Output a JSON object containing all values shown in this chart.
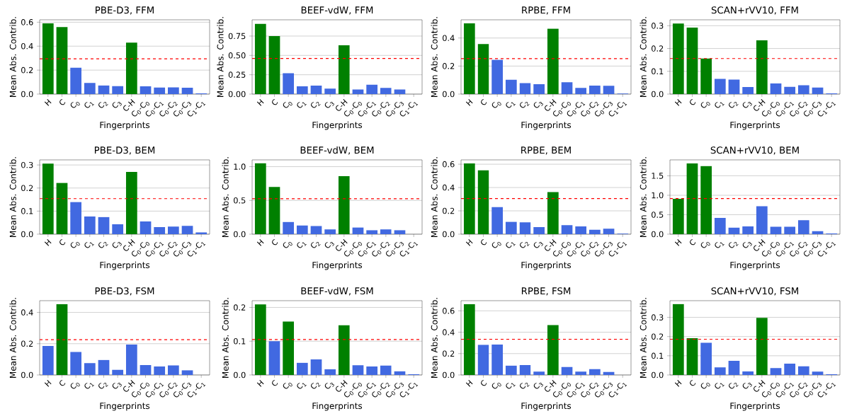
{
  "chart_data": [
    {
      "type": "bar",
      "title": "PBE-D3, FFM",
      "xlabel": "Fingerprints",
      "ylabel": "Mean Abs. Contrib.",
      "categories": [
        "H",
        "C",
        "C$_{0}$",
        "C$_{1}$",
        "C$_{2}$",
        "C$_{3}$",
        "C-H",
        "C$_{0}$-C$_{0}$",
        "C$_{0}$-C$_{1}$",
        "C$_{0}$-C$_{2}$",
        "C$_{0}$-C$_{3}$",
        "C$_{1}$-C$_{1}$"
      ],
      "values": [
        0.59,
        0.56,
        0.22,
        0.093,
        0.072,
        0.067,
        0.43,
        0.065,
        0.055,
        0.056,
        0.053,
        0.006
      ],
      "colors": [
        "#008000",
        "#008000",
        "#4169e1",
        "#4169e1",
        "#4169e1",
        "#4169e1",
        "#008000",
        "#4169e1",
        "#4169e1",
        "#4169e1",
        "#4169e1",
        "#4169e1"
      ],
      "ylim": [
        0,
        0.62
      ],
      "yticks": [
        {
          "value": 0,
          "label": "0.0"
        },
        {
          "value": 0.2,
          "label": "0.2"
        },
        {
          "value": 0.4,
          "label": "0.4"
        },
        {
          "value": 0.6,
          "label": "0.6"
        }
      ],
      "grid": "y",
      "ref_lines": [
        {
          "axis": "y",
          "value": 0.295,
          "color": "#ff0000",
          "line_style": "dashed"
        }
      ]
    },
    {
      "type": "bar",
      "title": "BEEF-vdW, FFM",
      "xlabel": "Fingerprints",
      "ylabel": "Mean Abs. Contrib.",
      "categories": [
        "H",
        "C",
        "C$_{0}$",
        "C$_{1}$",
        "C$_{2}$",
        "C$_{3}$",
        "C-H",
        "C$_{0}$-C$_{0}$",
        "C$_{0}$-C$_{1}$",
        "C$_{0}$-C$_{2}$",
        "C$_{0}$-C$_{3}$",
        "C$_{1}$-C$_{1}$"
      ],
      "values": [
        0.91,
        0.75,
        0.27,
        0.1,
        0.11,
        0.07,
        0.63,
        0.06,
        0.12,
        0.08,
        0.06,
        null
      ],
      "colors": [
        "#008000",
        "#008000",
        "#4169e1",
        "#4169e1",
        "#4169e1",
        "#4169e1",
        "#008000",
        "#4169e1",
        "#4169e1",
        "#4169e1",
        "#4169e1",
        "#4169e1"
      ],
      "ylim": [
        0,
        0.96
      ],
      "yticks": [
        {
          "value": 0,
          "label": "0.00"
        },
        {
          "value": 0.25,
          "label": "0.25"
        },
        {
          "value": 0.5,
          "label": "0.50"
        },
        {
          "value": 0.75,
          "label": "0.75"
        }
      ],
      "grid": "y",
      "ref_lines": [
        {
          "axis": "y",
          "value": 0.46,
          "color": "#ff0000",
          "line_style": "dashed"
        }
      ]
    },
    {
      "type": "bar",
      "title": "RPBE, FFM",
      "xlabel": "Fingerprints",
      "ylabel": "Mean Abs. Contrib.",
      "categories": [
        "H",
        "C",
        "C$_{0}$",
        "C$_{1}$",
        "C$_{2}$",
        "C$_{3}$",
        "C-H",
        "C$_{0}$-C$_{0}$",
        "C$_{0}$-C$_{1}$",
        "C$_{0}$-C$_{2}$",
        "C$_{0}$-C$_{3}$",
        "C$_{1}$-C$_{1}$"
      ],
      "values": [
        0.505,
        0.357,
        0.245,
        0.103,
        0.078,
        0.071,
        0.467,
        0.085,
        0.044,
        0.061,
        0.059,
        0.004
      ],
      "colors": [
        "#008000",
        "#008000",
        "#4169e1",
        "#4169e1",
        "#4169e1",
        "#4169e1",
        "#008000",
        "#4169e1",
        "#4169e1",
        "#4169e1",
        "#4169e1",
        "#4169e1"
      ],
      "ylim": [
        0,
        0.53
      ],
      "yticks": [
        {
          "value": 0,
          "label": "0.0"
        },
        {
          "value": 0.2,
          "label": "0.2"
        },
        {
          "value": 0.4,
          "label": "0.4"
        }
      ],
      "grid": "y",
      "ref_lines": [
        {
          "axis": "y",
          "value": 0.253,
          "color": "#ff0000",
          "line_style": "dashed"
        }
      ]
    },
    {
      "type": "bar",
      "title": "SCAN+rVV10, FFM",
      "xlabel": "Fingerprints",
      "ylabel": "Mean Abs. Contrib.",
      "categories": [
        "H",
        "C",
        "C$_{0}$",
        "C$_{1}$",
        "C$_{2}$",
        "C$_{3}$",
        "C-H",
        "C$_{0}$-C$_{0}$",
        "C$_{0}$-C$_{1}$",
        "C$_{0}$-C$_{2}$",
        "C$_{0}$-C$_{3}$",
        "C$_{1}$-C$_{1}$"
      ],
      "values": [
        0.31,
        0.292,
        0.156,
        0.067,
        0.064,
        0.031,
        0.236,
        0.047,
        0.032,
        0.039,
        0.029,
        0.003
      ],
      "colors": [
        "#008000",
        "#008000",
        "#008000",
        "#4169e1",
        "#4169e1",
        "#4169e1",
        "#008000",
        "#4169e1",
        "#4169e1",
        "#4169e1",
        "#4169e1",
        "#4169e1"
      ],
      "ylim": [
        0,
        0.326
      ],
      "yticks": [
        {
          "value": 0,
          "label": "0.0"
        },
        {
          "value": 0.1,
          "label": "0.1"
        },
        {
          "value": 0.2,
          "label": "0.2"
        },
        {
          "value": 0.3,
          "label": "0.3"
        }
      ],
      "grid": "y",
      "ref_lines": [
        {
          "axis": "y",
          "value": 0.156,
          "color": "#ff0000",
          "line_style": "dashed"
        }
      ]
    },
    {
      "type": "bar",
      "title": "PBE-D3, BEM",
      "xlabel": "Fingerprints",
      "ylabel": "Mean Abs. Contrib.",
      "categories": [
        "H",
        "C",
        "C$_{0}$",
        "C$_{1}$",
        "C$_{2}$",
        "C$_{3}$",
        "C-H",
        "C$_{0}$-C$_{0}$",
        "C$_{0}$-C$_{1}$",
        "C$_{0}$-C$_{2}$",
        "C$_{0}$-C$_{3}$",
        "C$_{1}$-C$_{1}$"
      ],
      "values": [
        0.306,
        0.222,
        0.139,
        0.077,
        0.074,
        0.043,
        0.27,
        0.055,
        0.031,
        0.033,
        0.036,
        0.008
      ],
      "colors": [
        "#008000",
        "#008000",
        "#4169e1",
        "#4169e1",
        "#4169e1",
        "#4169e1",
        "#008000",
        "#4169e1",
        "#4169e1",
        "#4169e1",
        "#4169e1",
        "#4169e1"
      ],
      "ylim": [
        0,
        0.322
      ],
      "yticks": [
        {
          "value": 0,
          "label": "0.0"
        },
        {
          "value": 0.1,
          "label": "0.1"
        },
        {
          "value": 0.2,
          "label": "0.2"
        },
        {
          "value": 0.3,
          "label": "0.3"
        }
      ],
      "grid": "y",
      "ref_lines": [
        {
          "axis": "y",
          "value": 0.154,
          "color": "#ff0000",
          "line_style": "dashed"
        }
      ]
    },
    {
      "type": "bar",
      "title": "BEEF-vdW, BEM",
      "xlabel": "Fingerprints",
      "ylabel": "Mean Abs. Contrib.",
      "categories": [
        "H",
        "C",
        "C$_{0}$",
        "C$_{1}$",
        "C$_{2}$",
        "C$_{3}$",
        "C-H",
        "C$_{0}$-C$_{0}$",
        "C$_{0}$-C$_{1}$",
        "C$_{0}$-C$_{2}$",
        "C$_{0}$-C$_{3}$",
        "C$_{1}$-C$_{1}$"
      ],
      "values": [
        1.05,
        0.7,
        0.18,
        0.13,
        0.12,
        0.07,
        0.86,
        0.1,
        0.06,
        0.07,
        0.06,
        null
      ],
      "colors": [
        "#008000",
        "#008000",
        "#4169e1",
        "#4169e1",
        "#4169e1",
        "#4169e1",
        "#008000",
        "#4169e1",
        "#4169e1",
        "#4169e1",
        "#4169e1",
        "#4169e1"
      ],
      "ylim": [
        0,
        1.1
      ],
      "yticks": [
        {
          "value": 0,
          "label": "0.0"
        },
        {
          "value": 0.5,
          "label": "0.5"
        },
        {
          "value": 1,
          "label": "1.0"
        }
      ],
      "grid": "y",
      "ref_lines": [
        {
          "axis": "y",
          "value": 0.525,
          "color": "#ff0000",
          "line_style": "dashed"
        }
      ]
    },
    {
      "type": "bar",
      "title": "RPBE, BEM",
      "xlabel": "Fingerprints",
      "ylabel": "Mean Abs. Contrib.",
      "categories": [
        "H",
        "C",
        "C$_{0}$",
        "C$_{1}$",
        "C$_{2}$",
        "C$_{3}$",
        "C-H",
        "C$_{0}$-C$_{0}$",
        "C$_{0}$-C$_{1}$",
        "C$_{0}$-C$_{2}$",
        "C$_{0}$-C$_{3}$",
        "C$_{1}$-C$_{1}$"
      ],
      "values": [
        0.607,
        0.548,
        0.232,
        0.106,
        0.102,
        0.06,
        0.361,
        0.078,
        0.066,
        0.038,
        0.047,
        0.004
      ],
      "colors": [
        "#008000",
        "#008000",
        "#4169e1",
        "#4169e1",
        "#4169e1",
        "#4169e1",
        "#008000",
        "#4169e1",
        "#4169e1",
        "#4169e1",
        "#4169e1",
        "#4169e1"
      ],
      "ylim": [
        0,
        0.637
      ],
      "yticks": [
        {
          "value": 0,
          "label": "0.0"
        },
        {
          "value": 0.2,
          "label": "0.2"
        },
        {
          "value": 0.4,
          "label": "0.4"
        },
        {
          "value": 0.6,
          "label": "0.6"
        }
      ],
      "grid": "y",
      "ref_lines": [
        {
          "axis": "y",
          "value": 0.305,
          "color": "#ff0000",
          "line_style": "dashed"
        }
      ]
    },
    {
      "type": "bar",
      "title": "SCAN+rVV10, BEM",
      "xlabel": "Fingerprints",
      "ylabel": "Mean Abs. Contrib.",
      "categories": [
        "H",
        "C",
        "C$_{0}$",
        "C$_{1}$",
        "C$_{2}$",
        "C$_{3}$",
        "C-H",
        "C$_{0}$-C$_{0}$",
        "C$_{0}$-C$_{1}$",
        "C$_{0}$-C$_{2}$",
        "C$_{0}$-C$_{3}$",
        "C$_{1}$-C$_{1}$"
      ],
      "values": [
        0.91,
        1.82,
        1.75,
        0.42,
        0.17,
        0.2,
        0.72,
        0.19,
        0.19,
        0.36,
        0.08,
        0.02
      ],
      "colors": [
        "#008000",
        "#008000",
        "#008000",
        "#4169e1",
        "#4169e1",
        "#4169e1",
        "#4169e1",
        "#4169e1",
        "#4169e1",
        "#4169e1",
        "#4169e1",
        "#4169e1"
      ],
      "ylim": [
        0,
        1.91
      ],
      "yticks": [
        {
          "value": 0,
          "label": "0.0"
        },
        {
          "value": 0.5,
          "label": "0.5"
        },
        {
          "value": 1,
          "label": "1.0"
        },
        {
          "value": 1.5,
          "label": "1.5"
        }
      ],
      "grid": "y",
      "ref_lines": [
        {
          "axis": "y",
          "value": 0.915,
          "color": "#ff0000",
          "line_style": "dashed"
        }
      ]
    },
    {
      "type": "bar",
      "title": "PBE-D3, FSM",
      "xlabel": "Fingerprints",
      "ylabel": "Mean Abs. Contrib.",
      "categories": [
        "H",
        "C",
        "C$_{0}$",
        "C$_{1}$",
        "C$_{2}$",
        "C$_{3}$",
        "C-H",
        "C$_{0}$-C$_{0}$",
        "C$_{0}$-C$_{1}$",
        "C$_{0}$-C$_{2}$",
        "C$_{0}$-C$_{3}$",
        "C$_{1}$-C$_{1}$"
      ],
      "values": [
        0.185,
        0.452,
        0.147,
        0.076,
        0.096,
        0.033,
        0.194,
        0.063,
        0.054,
        0.061,
        0.03,
        null
      ],
      "colors": [
        "#4169e1",
        "#008000",
        "#4169e1",
        "#4169e1",
        "#4169e1",
        "#4169e1",
        "#4169e1",
        "#4169e1",
        "#4169e1",
        "#4169e1",
        "#4169e1",
        "#4169e1"
      ],
      "ylim": [
        0,
        0.475
      ],
      "yticks": [
        {
          "value": 0,
          "label": "0.0"
        },
        {
          "value": 0.2,
          "label": "0.2"
        },
        {
          "value": 0.4,
          "label": "0.4"
        }
      ],
      "grid": "y",
      "ref_lines": [
        {
          "axis": "y",
          "value": 0.226,
          "color": "#ff0000",
          "line_style": "dashed"
        }
      ]
    },
    {
      "type": "bar",
      "title": "BEEF-vdW, FSM",
      "xlabel": "Fingerprints",
      "ylabel": "Mean Abs. Contrib.",
      "categories": [
        "H",
        "C",
        "C$_{0}$",
        "C$_{1}$",
        "C$_{2}$",
        "C$_{3}$",
        "C-H",
        "C$_{0}$-C$_{0}$",
        "C$_{0}$-C$_{1}$",
        "C$_{0}$-C$_{2}$",
        "C$_{0}$-C$_{3}$",
        "C$_{1}$-C$_{1}$"
      ],
      "values": [
        0.209,
        0.1,
        0.158,
        0.036,
        0.046,
        0.017,
        0.147,
        0.029,
        0.025,
        0.028,
        0.011,
        0.002
      ],
      "colors": [
        "#008000",
        "#4169e1",
        "#008000",
        "#4169e1",
        "#4169e1",
        "#4169e1",
        "#008000",
        "#4169e1",
        "#4169e1",
        "#4169e1",
        "#4169e1",
        "#4169e1"
      ],
      "ylim": [
        0,
        0.22
      ],
      "yticks": [
        {
          "value": 0,
          "label": "0.0"
        },
        {
          "value": 0.1,
          "label": "0.1"
        },
        {
          "value": 0.2,
          "label": "0.2"
        }
      ],
      "grid": "y",
      "ref_lines": [
        {
          "axis": "y",
          "value": 0.105,
          "color": "#ff0000",
          "line_style": "dashed"
        }
      ]
    },
    {
      "type": "bar",
      "title": "RPBE, FSM",
      "xlabel": "Fingerprints",
      "ylabel": "Mean Abs. Contrib.",
      "categories": [
        "H",
        "C",
        "C$_{0}$",
        "C$_{1}$",
        "C$_{2}$",
        "C$_{3}$",
        "C-H",
        "C$_{0}$-C$_{0}$",
        "C$_{0}$-C$_{1}$",
        "C$_{0}$-C$_{2}$",
        "C$_{0}$-C$_{3}$",
        "C$_{1}$-C$_{1}$"
      ],
      "values": [
        0.662,
        0.283,
        0.285,
        0.088,
        0.093,
        0.032,
        0.466,
        0.075,
        0.031,
        0.055,
        0.028,
        null
      ],
      "colors": [
        "#008000",
        "#4169e1",
        "#4169e1",
        "#4169e1",
        "#4169e1",
        "#4169e1",
        "#008000",
        "#4169e1",
        "#4169e1",
        "#4169e1",
        "#4169e1",
        "#4169e1"
      ],
      "ylim": [
        0,
        0.695
      ],
      "yticks": [
        {
          "value": 0,
          "label": "0.0"
        },
        {
          "value": 0.2,
          "label": "0.2"
        },
        {
          "value": 0.4,
          "label": "0.4"
        },
        {
          "value": 0.6,
          "label": "0.6"
        }
      ],
      "grid": "y",
      "ref_lines": [
        {
          "axis": "y",
          "value": 0.333,
          "color": "#ff0000",
          "line_style": "dashed"
        }
      ]
    },
    {
      "type": "bar",
      "title": "SCAN+rVV10, FSM",
      "xlabel": "Fingerprints",
      "ylabel": "Mean Abs. Contrib.",
      "categories": [
        "H",
        "C",
        "C$_{0}$",
        "C$_{1}$",
        "C$_{2}$",
        "C$_{3}$",
        "C-H",
        "C$_{0}$-C$_{0}$",
        "C$_{0}$-C$_{1}$",
        "C$_{0}$-C$_{2}$",
        "C$_{0}$-C$_{3}$",
        "C$_{1}$-C$_{1}$"
      ],
      "values": [
        0.369,
        0.192,
        0.168,
        0.04,
        0.074,
        0.018,
        0.298,
        0.036,
        0.059,
        0.045,
        0.017,
        0.004
      ],
      "colors": [
        "#008000",
        "#008000",
        "#4169e1",
        "#4169e1",
        "#4169e1",
        "#4169e1",
        "#008000",
        "#4169e1",
        "#4169e1",
        "#4169e1",
        "#4169e1",
        "#4169e1"
      ],
      "ylim": [
        0,
        0.387
      ],
      "yticks": [
        {
          "value": 0,
          "label": "0.0"
        },
        {
          "value": 0.1,
          "label": "0.1"
        },
        {
          "value": 0.2,
          "label": "0.2"
        },
        {
          "value": 0.3,
          "label": "0.3"
        }
      ],
      "grid": "y",
      "ref_lines": [
        {
          "axis": "y",
          "value": 0.186,
          "color": "#ff0000",
          "line_style": "dashed"
        }
      ]
    }
  ]
}
